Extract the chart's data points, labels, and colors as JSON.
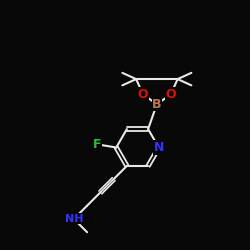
{
  "bg_color": "#080808",
  "bond_color": "#e8e8e8",
  "atom_colors": {
    "N": "#3333ff",
    "O": "#dd1100",
    "B": "#bb7755",
    "F": "#33bb33",
    "NH": "#3333ff"
  },
  "figsize": [
    2.5,
    2.5
  ],
  "dpi": 100
}
